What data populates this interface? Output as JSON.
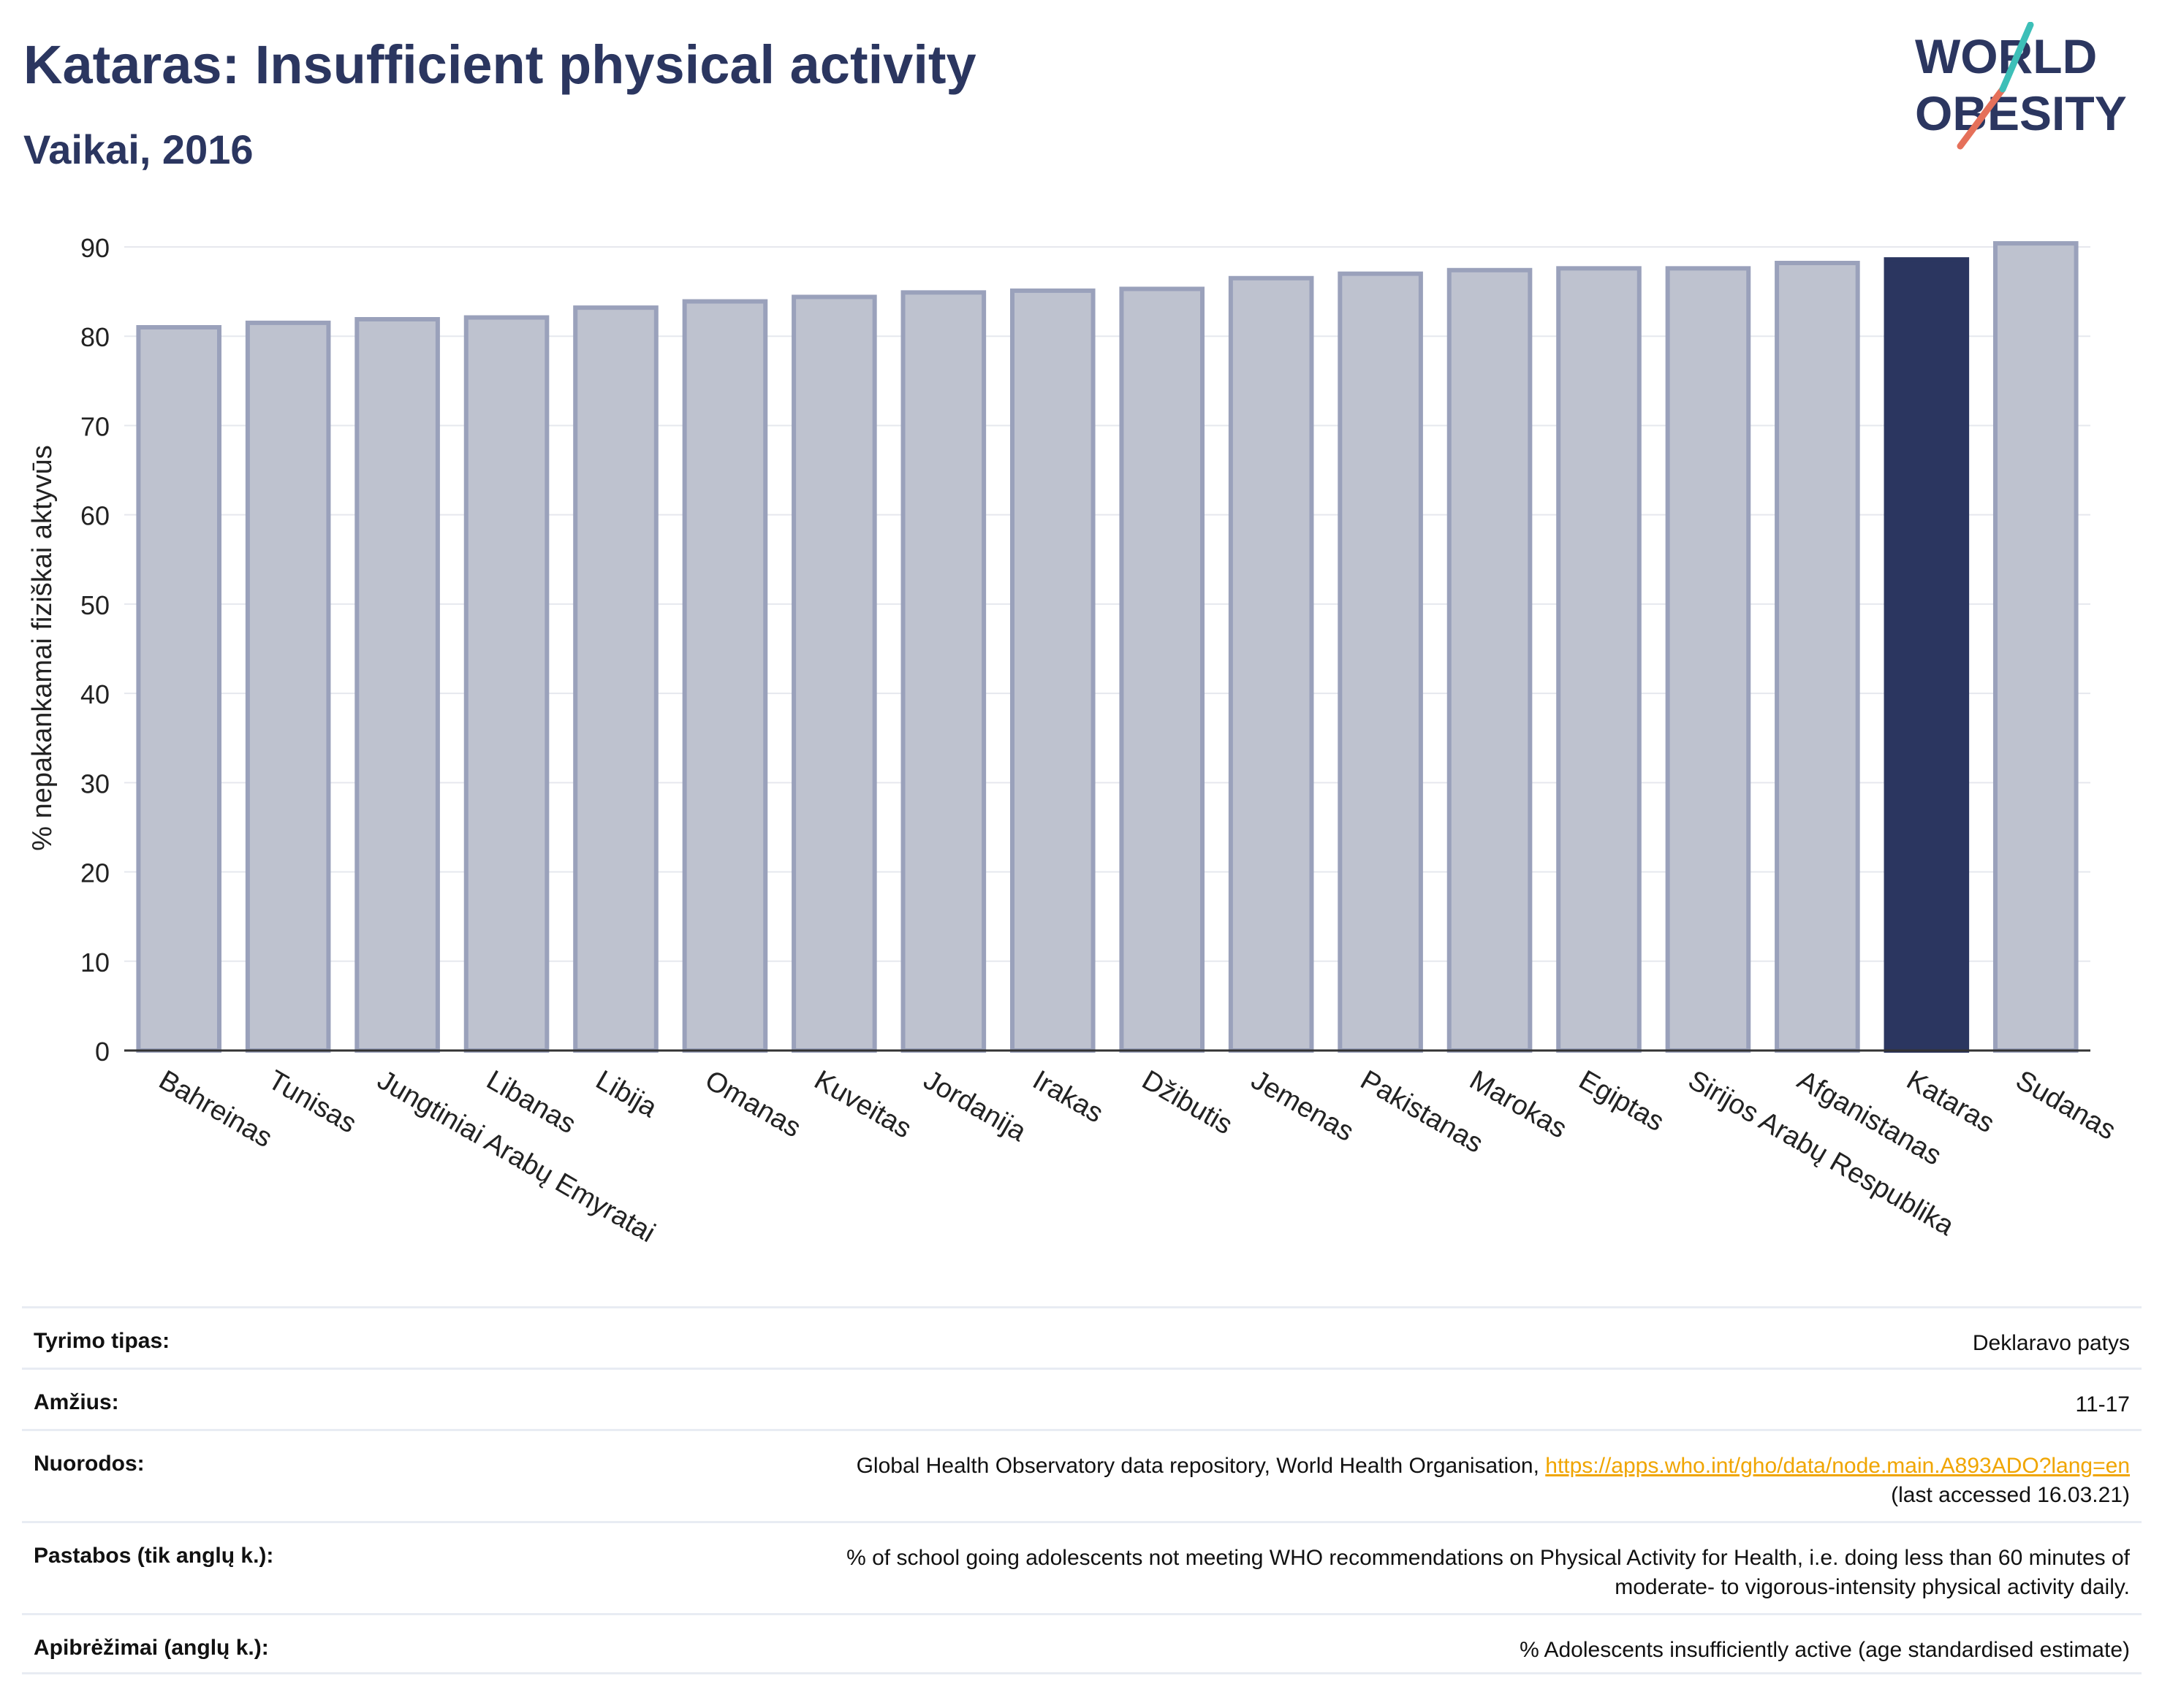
{
  "header": {
    "title": "Kataras: Insufficient physical activity",
    "subtitle": "Vaikai, 2016"
  },
  "logo": {
    "line1": "WORLD",
    "line2": "OBESITY"
  },
  "colors": {
    "bar": "#bec2cf",
    "bar_border": "#9aa1bb",
    "highlight": "#2b3660",
    "text": "#2b3660",
    "link": "#f0a500"
  },
  "chart_data": {
    "type": "bar",
    "ylabel": "% nepakankamai fiziškai aktyvūs",
    "ylim": [
      0,
      90
    ],
    "yticks": [
      0,
      10,
      20,
      30,
      40,
      50,
      60,
      70,
      80,
      90
    ],
    "grid": true,
    "categories": [
      "Bahreinas",
      "Tunisas",
      "Jungtiniai Arabų Emyratai",
      "Libanas",
      "Libija",
      "Omanas",
      "Kuveitas",
      "Jordanija",
      "Irakas",
      "Džibutis",
      "Jemenas",
      "Pakistanas",
      "Marokas",
      "Egiptas",
      "Sirijos Arabų Respublika",
      "Afganistanas",
      "Kataras",
      "Sudanas"
    ],
    "values": [
      81.0,
      81.5,
      81.9,
      82.1,
      83.2,
      83.9,
      84.4,
      84.9,
      85.1,
      85.3,
      86.5,
      87.0,
      87.4,
      87.6,
      87.6,
      88.2,
      88.6,
      90.4
    ],
    "highlight": "Kataras"
  },
  "info": {
    "rows": [
      {
        "label": "Tyrimo tipas:",
        "value": "Deklaravo patys"
      },
      {
        "label": "Amžius:",
        "value": "11-17"
      },
      {
        "label": "Nuorodos:",
        "value_pre": "Global Health Observatory data repository, World Health Organisation, ",
        "link": "https://apps.who.int/gho/data/node.main.A893ADO?lang=en",
        "value_post": "(last accessed 16.03.21)"
      },
      {
        "label": "Pastabos (tik anglų k.):",
        "value_line1": "% of school going adolescents not meeting WHO recommendations on Physical Activity for Health, i.e. doing less than 60 minutes of",
        "value_line2": "moderate- to vigorous-intensity physical activity daily."
      },
      {
        "label": "Apibrėžimai (anglų k.):",
        "value": "% Adolescents insufficiently active (age standardised estimate)"
      }
    ]
  }
}
